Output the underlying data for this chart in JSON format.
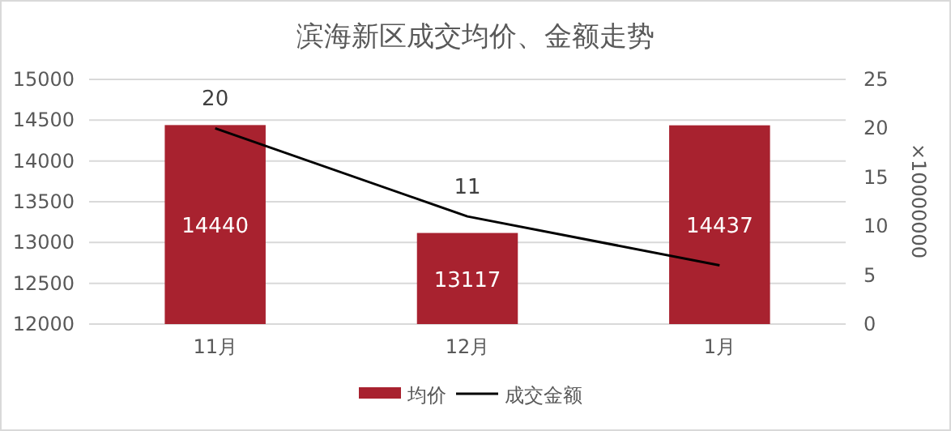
{
  "chart_data": {
    "type": "bar",
    "title": "滨海新区成交均价、金额走势",
    "categories": [
      "11月",
      "12月",
      "1月"
    ],
    "series": [
      {
        "name": "均价",
        "color": "#a8222f",
        "values": [
          14440,
          13117,
          14437
        ],
        "value_labels": [
          "14440",
          "13117",
          "14437"
        ]
      },
      {
        "name": "成交金额",
        "type": "line",
        "axis": "y2",
        "color": "#000000",
        "values": [
          20,
          11,
          6
        ],
        "value_labels": [
          "20",
          "11",
          null
        ]
      }
    ],
    "ylim": [
      12000,
      15000
    ],
    "yticks": [
      12000,
      12500,
      13000,
      13500,
      14000,
      14500,
      15000
    ],
    "y2lim": [
      0,
      25
    ],
    "y2ticks": [
      0,
      5,
      10,
      15,
      20,
      25
    ],
    "y2label": "×10000000",
    "grid": "y",
    "legend": "bottom",
    "marker": "none",
    "line_style": "solid"
  }
}
